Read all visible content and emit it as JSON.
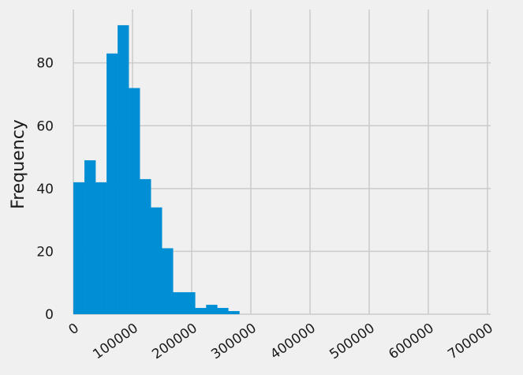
{
  "chart_data": {
    "type": "bar",
    "title": "",
    "xlabel": "",
    "ylabel": "Frequency",
    "bin_width": 18700,
    "bin_starts": [
      0,
      18700,
      37400,
      56100,
      74800,
      93500,
      112200,
      130900,
      149600,
      168300,
      187000,
      205700,
      224400,
      243100,
      261800,
      280500
    ],
    "values": [
      42,
      49,
      42,
      83,
      92,
      72,
      43,
      34,
      21,
      7,
      7,
      2,
      3,
      2,
      1,
      0
    ],
    "xlim": [
      0,
      700000
    ],
    "ylim": [
      0,
      95
    ],
    "xticks": [
      0,
      100000,
      200000,
      300000,
      400000,
      500000,
      600000,
      700000
    ],
    "xtick_labels": [
      "0",
      "100000",
      "200000",
      "300000",
      "400000",
      "500000",
      "600000",
      "700000"
    ],
    "yticks": [
      0,
      20,
      40,
      60,
      80
    ],
    "ytick_labels": [
      "0",
      "20",
      "40",
      "60",
      "80"
    ],
    "grid": true,
    "colors": {
      "bar": "#008fd5",
      "grid": "#cbcbcb",
      "background": "#f0f0f0"
    }
  }
}
